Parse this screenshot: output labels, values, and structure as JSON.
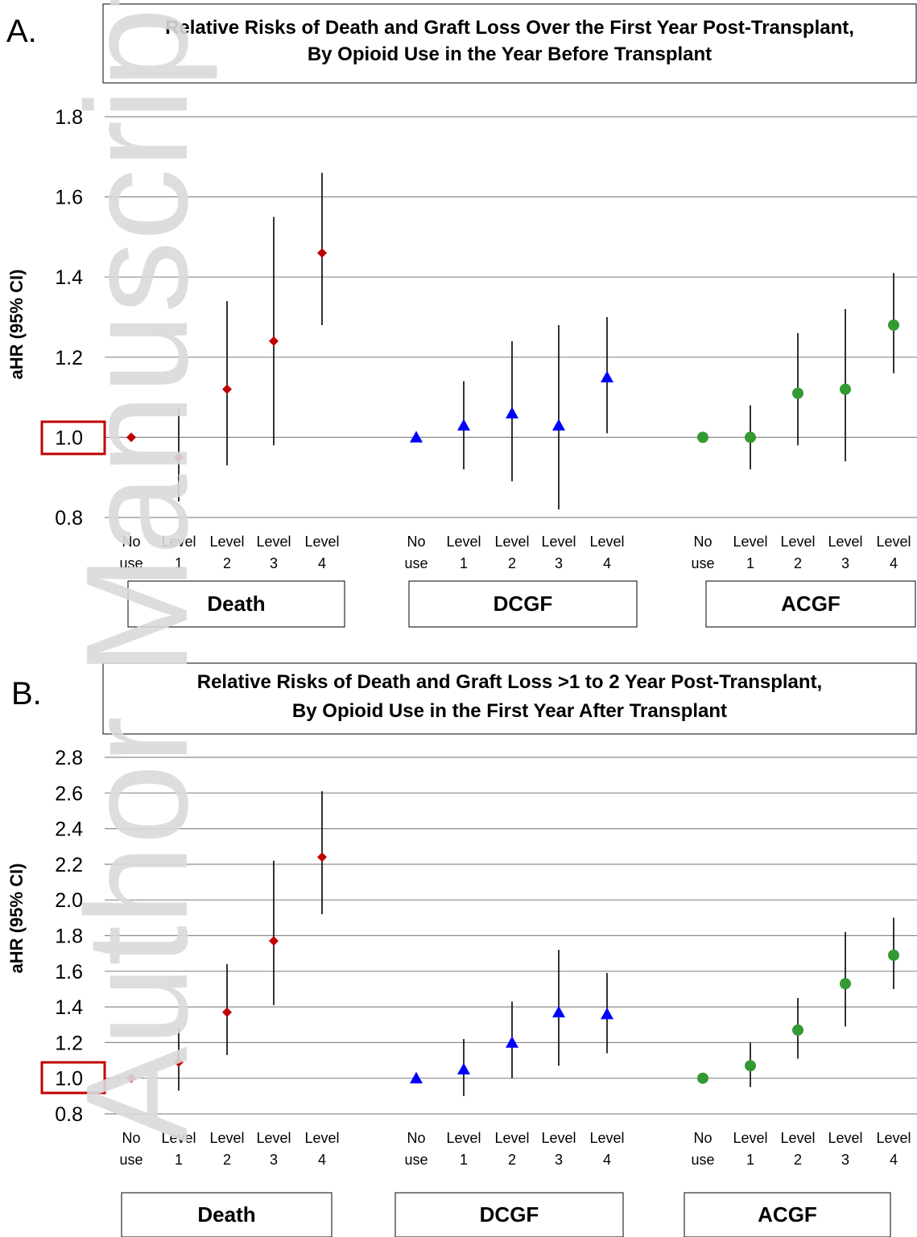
{
  "figure": {
    "watermark_text": "Author Manuscript",
    "colors": {
      "grid": "#8c8c8c",
      "ci_line": "#000000",
      "ref_box": "#c00000",
      "watermark": "#d9d9d9",
      "death": "#c00000",
      "dcgf": "#0000ff",
      "acgf": "#339933"
    }
  },
  "chart_data": [
    {
      "panel_label": "A.",
      "type": "scatter",
      "title_line1": "Relative Risks of Death and Graft Loss Over the First Year Post-Transplant,",
      "title_line2": "By Opioid Use in the Year Before Transplant",
      "ylabel": "aHR (95% CI)",
      "ylim": [
        0.8,
        1.8
      ],
      "yticks": [
        "1.8",
        "1.6",
        "1.4",
        "1.2",
        "1.0",
        "0.8"
      ],
      "highlighted_tick": "1.0",
      "grid": true,
      "categories": [
        [
          "No",
          "use"
        ],
        [
          "Level",
          "1"
        ],
        [
          "Level",
          "2"
        ],
        [
          "Level",
          "3"
        ],
        [
          "Level",
          "4"
        ]
      ],
      "groups": [
        {
          "name": "Death",
          "marker": "diamond",
          "color": "#c00000",
          "points": [
            {
              "est": 1.0,
              "lo": null,
              "hi": null
            },
            {
              "est": 0.95,
              "lo": 0.84,
              "hi": 1.07
            },
            {
              "est": 1.12,
              "lo": 0.93,
              "hi": 1.34
            },
            {
              "est": 1.24,
              "lo": 0.98,
              "hi": 1.55
            },
            {
              "est": 1.46,
              "lo": 1.28,
              "hi": 1.66
            }
          ]
        },
        {
          "name": "DCGF",
          "marker": "triangle",
          "color": "#0000ff",
          "points": [
            {
              "est": 1.0,
              "lo": null,
              "hi": null
            },
            {
              "est": 1.03,
              "lo": 0.92,
              "hi": 1.14
            },
            {
              "est": 1.06,
              "lo": 0.89,
              "hi": 1.24
            },
            {
              "est": 1.03,
              "lo": 0.82,
              "hi": 1.28
            },
            {
              "est": 1.15,
              "lo": 1.01,
              "hi": 1.3
            }
          ]
        },
        {
          "name": "ACGF",
          "marker": "circle",
          "color": "#339933",
          "points": [
            {
              "est": 1.0,
              "lo": null,
              "hi": null
            },
            {
              "est": 1.0,
              "lo": 0.92,
              "hi": 1.08
            },
            {
              "est": 1.11,
              "lo": 0.98,
              "hi": 1.26
            },
            {
              "est": 1.12,
              "lo": 0.94,
              "hi": 1.32
            },
            {
              "est": 1.28,
              "lo": 1.16,
              "hi": 1.41
            }
          ]
        }
      ]
    },
    {
      "panel_label": "B.",
      "type": "scatter",
      "title_line1": "Relative Risks of Death and Graft Loss >1 to 2 Year Post-Transplant,",
      "title_line2": "By Opioid Use in the First Year After Transplant",
      "ylabel": "aHR (95% CI)",
      "ylim": [
        0.8,
        2.8
      ],
      "yticks": [
        "2.8",
        "2.6",
        "2.4",
        "2.2",
        "2.0",
        "1.8",
        "1.6",
        "1.4",
        "1.2",
        "1.0",
        "0.8"
      ],
      "highlighted_tick": "1.0",
      "grid": true,
      "categories": [
        [
          "No",
          "use"
        ],
        [
          "Level",
          "1"
        ],
        [
          "Level",
          "2"
        ],
        [
          "Level",
          "3"
        ],
        [
          "Level",
          "4"
        ]
      ],
      "groups": [
        {
          "name": "Death",
          "marker": "diamond",
          "color": "#c00000",
          "points": [
            {
              "est": 1.0,
              "lo": null,
              "hi": null
            },
            {
              "est": 1.09,
              "lo": 0.93,
              "hi": 1.28
            },
            {
              "est": 1.37,
              "lo": 1.13,
              "hi": 1.64
            },
            {
              "est": 1.77,
              "lo": 1.41,
              "hi": 2.22
            },
            {
              "est": 2.24,
              "lo": 1.92,
              "hi": 2.61
            }
          ]
        },
        {
          "name": "DCGF",
          "marker": "triangle",
          "color": "#0000ff",
          "points": [
            {
              "est": 1.0,
              "lo": null,
              "hi": null
            },
            {
              "est": 1.05,
              "lo": 0.9,
              "hi": 1.22
            },
            {
              "est": 1.2,
              "lo": 1.0,
              "hi": 1.43
            },
            {
              "est": 1.37,
              "lo": 1.07,
              "hi": 1.72
            },
            {
              "est": 1.36,
              "lo": 1.14,
              "hi": 1.59
            }
          ]
        },
        {
          "name": "ACGF",
          "marker": "circle",
          "color": "#339933",
          "points": [
            {
              "est": 1.0,
              "lo": null,
              "hi": null
            },
            {
              "est": 1.07,
              "lo": 0.95,
              "hi": 1.2
            },
            {
              "est": 1.27,
              "lo": 1.11,
              "hi": 1.45
            },
            {
              "est": 1.53,
              "lo": 1.29,
              "hi": 1.82
            },
            {
              "est": 1.69,
              "lo": 1.5,
              "hi": 1.9
            }
          ]
        }
      ]
    }
  ]
}
